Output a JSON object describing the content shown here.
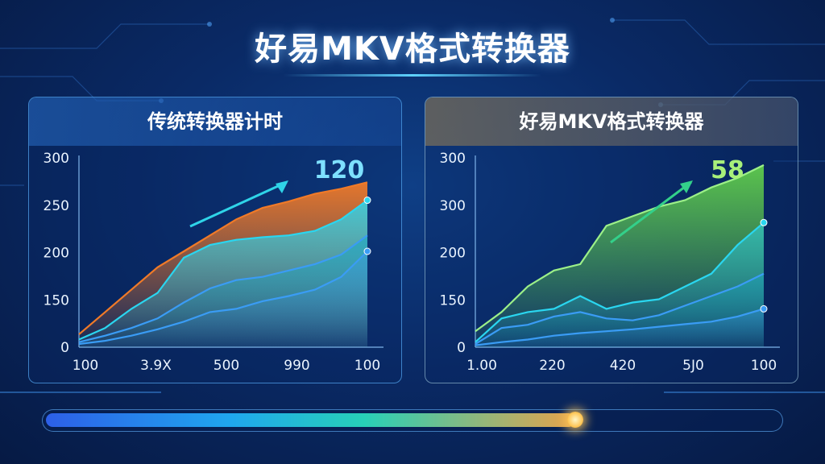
{
  "page": {
    "title": "好易MKV格式转换器"
  },
  "progress": {
    "value": 0.72
  },
  "colors": {
    "orange": "#f07a28",
    "cyan": "#2ad6f0",
    "teal": "#1aa8c8",
    "blue": "#3a9cf5",
    "green": "#6ae04a",
    "light_green": "#9cf088"
  },
  "chart_data": [
    {
      "type": "area",
      "title": "传统转换器计时",
      "highlight_value": "120",
      "y_ticks": [
        "300",
        "250",
        "200",
        "150",
        "0"
      ],
      "x_ticks": [
        "100",
        "3.9X",
        "500",
        "990",
        "100"
      ],
      "series": [
        {
          "values": [
            20,
            55,
            90,
            125,
            150,
            175,
            200,
            218,
            228,
            240,
            248,
            258
          ]
        },
        {
          "values": [
            12,
            30,
            60,
            85,
            140,
            160,
            168,
            172,
            175,
            182,
            200,
            230
          ]
        },
        {
          "values": [
            8,
            18,
            30,
            45,
            70,
            92,
            105,
            110,
            120,
            130,
            145,
            175
          ]
        },
        {
          "values": [
            5,
            10,
            18,
            28,
            40,
            55,
            60,
            72,
            80,
            90,
            110,
            150
          ]
        }
      ]
    },
    {
      "type": "area",
      "title": "好易MKV格式转换器",
      "highlight_value": "58",
      "y_ticks": [
        "300",
        "300",
        "200",
        "150",
        "0"
      ],
      "x_ticks": [
        "1.00",
        "220",
        "420",
        "5J0",
        "100"
      ],
      "series": [
        {
          "values": [
            25,
            55,
            95,
            120,
            130,
            190,
            205,
            220,
            230,
            250,
            265,
            285
          ]
        },
        {
          "values": [
            8,
            45,
            55,
            60,
            80,
            60,
            70,
            75,
            95,
            115,
            160,
            195
          ]
        },
        {
          "values": [
            5,
            30,
            35,
            48,
            55,
            45,
            42,
            50,
            65,
            80,
            95,
            115
          ]
        },
        {
          "values": [
            3,
            8,
            12,
            18,
            22,
            25,
            28,
            32,
            36,
            40,
            48,
            60
          ]
        }
      ]
    }
  ]
}
